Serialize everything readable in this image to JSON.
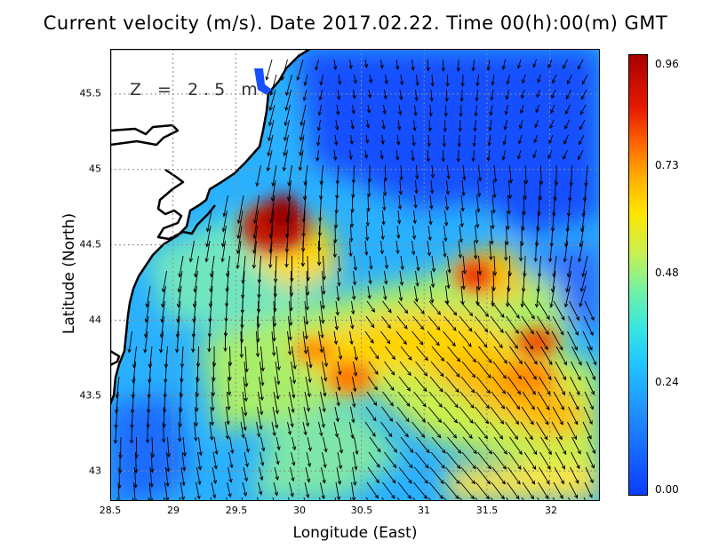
{
  "title": "Current velocity (m/s). Date 2017.02.22. Time 00(h):00(m) GMT",
  "xlabel": "Longitude (East)",
  "ylabel": "Latitude (North)",
  "depth_label": "Z = 2.5 m",
  "x_ticks": [
    "28.5",
    "29",
    "29.5",
    "30",
    "30.5",
    "31",
    "31.5",
    "32"
  ],
  "y_ticks": [
    "45.5",
    "45",
    "44.5",
    "44",
    "43.5",
    "43"
  ],
  "colorbar_ticks": [
    "0.96",
    "0.73",
    "0.48",
    "0.24",
    "0.00"
  ],
  "chart_data": {
    "type": "heatmap",
    "title": "Current velocity (m/s). Date 2017.02.22. Time 00(h):00(m) GMT",
    "xlabel": "Longitude (East)",
    "ylabel": "Latitude (North)",
    "xlim": [
      28.5,
      32.4
    ],
    "ylim": [
      42.8,
      45.8
    ],
    "colorbar": {
      "min": 0.0,
      "max": 0.96,
      "ticks": [
        0.0,
        0.24,
        0.48,
        0.73,
        0.96
      ]
    },
    "grid": true,
    "vectors": true,
    "hotspots": [
      {
        "lon": 29.7,
        "lat": 44.55,
        "speed": 0.96
      },
      {
        "lon": 31.4,
        "lat": 44.3,
        "speed": 0.8
      },
      {
        "lon": 31.9,
        "lat": 43.85,
        "speed": 0.78
      },
      {
        "lon": 30.4,
        "lat": 43.65,
        "speed": 0.75
      }
    ]
  }
}
